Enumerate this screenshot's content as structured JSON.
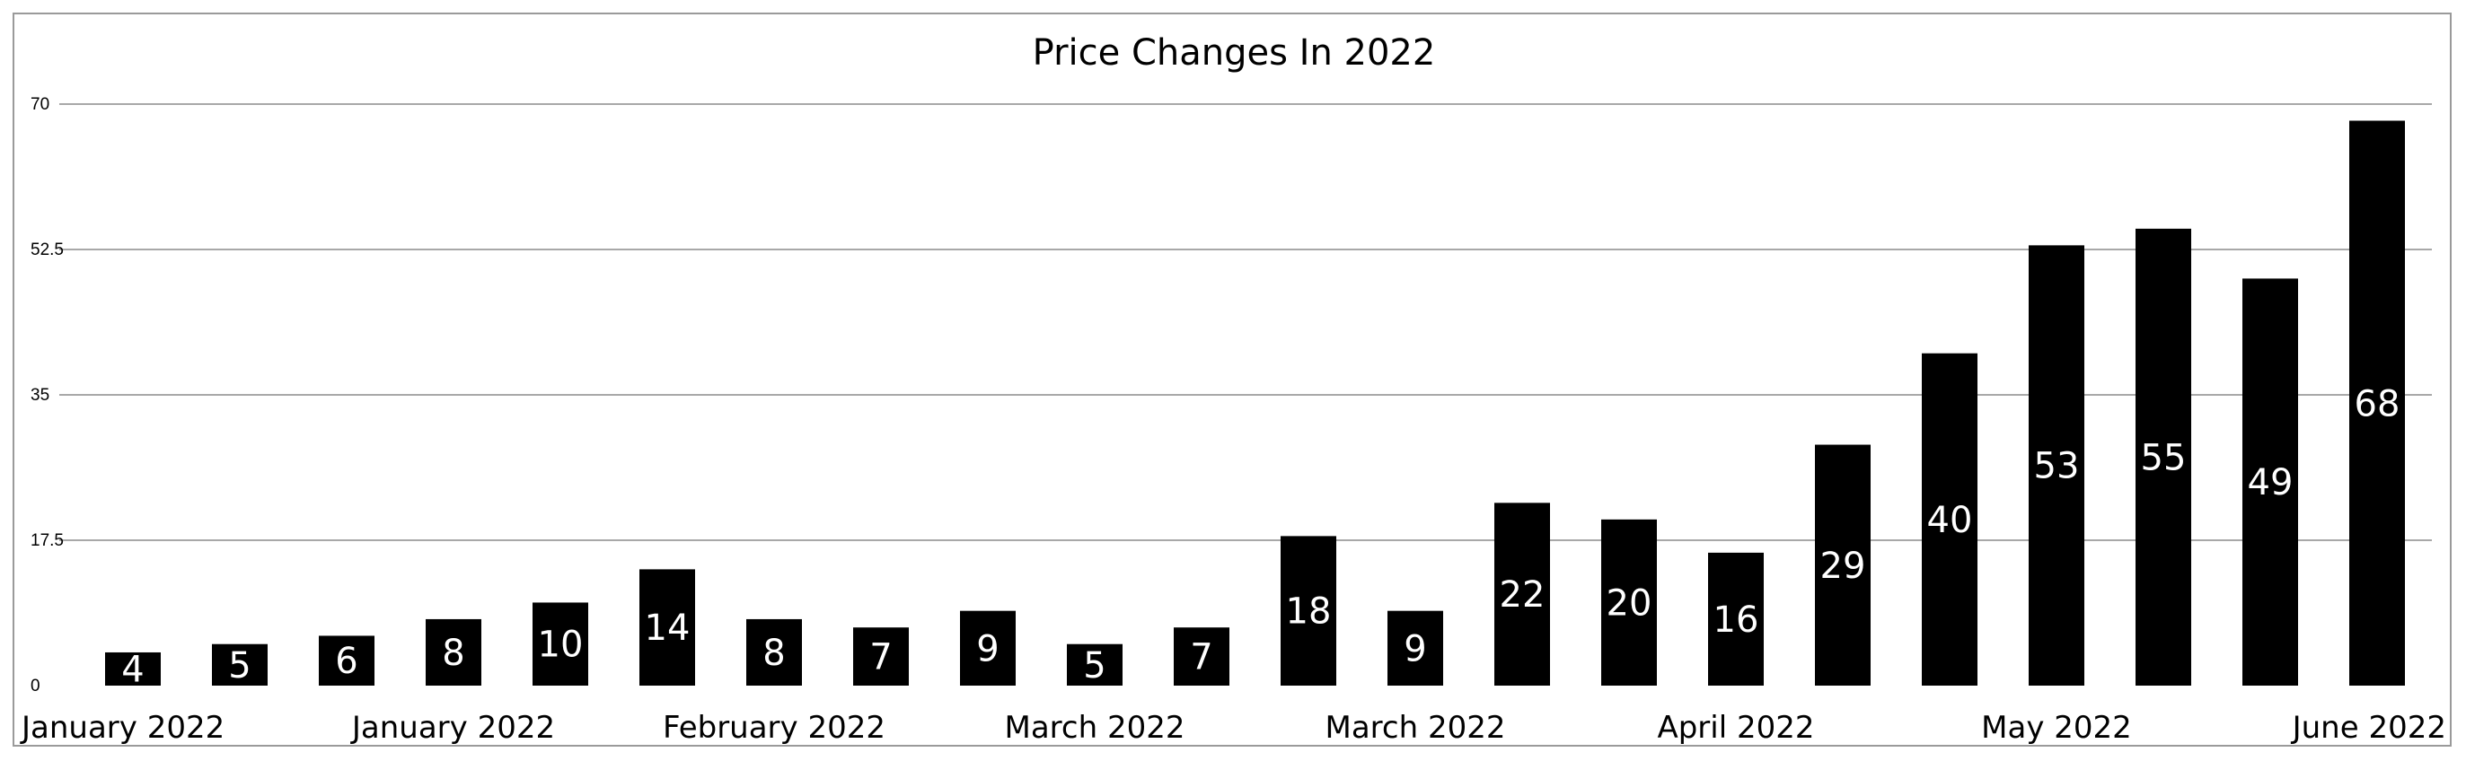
{
  "chart_data": {
    "type": "bar",
    "title": "Price Changes In 2022",
    "xlabel": "",
    "ylabel": "",
    "ylim": [
      0,
      70
    ],
    "yticks": [
      "0",
      "17.5",
      "35",
      "52.5",
      "70"
    ],
    "grid": true,
    "legend": "none",
    "bar_color": "#000000",
    "label_color": "#ffffff",
    "values": [
      4,
      5,
      6,
      8,
      10,
      14,
      8,
      7,
      9,
      5,
      7,
      18,
      9,
      22,
      20,
      16,
      29,
      40,
      53,
      55,
      49,
      68
    ],
    "x_tick_labels": [
      {
        "label": "January 2022",
        "index": 0
      },
      {
        "label": "January 2022",
        "index": 3
      },
      {
        "label": "February 2022",
        "index": 6
      },
      {
        "label": "March 2022",
        "index": 9
      },
      {
        "label": "March 2022",
        "index": 12
      },
      {
        "label": "April 2022",
        "index": 15
      },
      {
        "label": "May 2022",
        "index": 18
      },
      {
        "label": "June 2022",
        "index": 21
      }
    ]
  }
}
